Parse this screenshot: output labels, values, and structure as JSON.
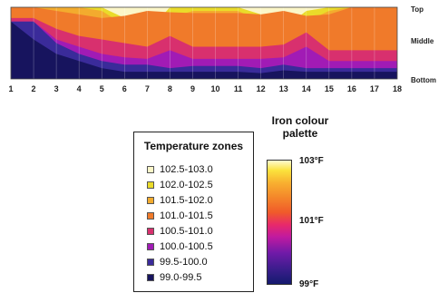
{
  "chart_data": {
    "type": "heatmap",
    "title": "",
    "x": [
      1,
      2,
      3,
      4,
      5,
      6,
      7,
      8,
      9,
      10,
      11,
      12,
      13,
      14,
      15,
      16,
      17,
      18
    ],
    "y_labels": [
      "Top",
      "Middle",
      "Bottom"
    ],
    "zone_upper_boundaries_from_bottom": [
      {
        "zone": "99.0-99.5",
        "values": [
          80,
          55,
          35,
          25,
          15,
          10,
          10,
          10,
          10,
          10,
          10,
          8,
          12,
          10,
          10,
          10,
          10,
          10
        ]
      },
      {
        "zone": "99.5-100.0",
        "values": [
          80,
          80,
          50,
          35,
          25,
          20,
          20,
          15,
          18,
          18,
          18,
          15,
          20,
          15,
          15,
          15,
          15,
          15
        ]
      },
      {
        "zone": "100.0-100.5",
        "values": [
          80,
          80,
          55,
          45,
          35,
          30,
          28,
          40,
          28,
          28,
          28,
          28,
          30,
          45,
          25,
          25,
          25,
          25
        ]
      },
      {
        "zone": "100.5-101.0",
        "values": [
          85,
          85,
          70,
          60,
          55,
          50,
          45,
          60,
          45,
          45,
          45,
          45,
          48,
          65,
          40,
          40,
          40,
          40
        ]
      },
      {
        "zone": "101.0-101.5",
        "values": [
          100,
          100,
          95,
          90,
          85,
          88,
          95,
          93,
          92,
          92,
          92,
          90,
          95,
          88,
          90,
          100,
          100,
          100
        ]
      },
      {
        "zone": "101.5-102.0",
        "values": [
          100,
          100,
          100,
          100,
          95,
          75,
          75,
          85,
          95,
          95,
          95,
          80,
          80,
          80,
          95,
          100,
          100,
          100
        ]
      },
      {
        "zone": "102.0-102.5",
        "values": [
          100,
          100,
          100,
          100,
          100,
          85,
          65,
          100,
          100,
          100,
          100,
          90,
          70,
          95,
          100,
          100,
          100,
          100
        ]
      },
      {
        "zone": "102.5-103.0",
        "values": [
          100,
          100,
          100,
          100,
          100,
          100,
          60,
          100,
          100,
          100,
          100,
          100,
          60,
          100,
          100,
          100,
          100,
          100
        ]
      }
    ],
    "ylim": [
      0,
      100
    ],
    "colors": [
      "#17145e",
      "#3a2b9a",
      "#a11bb5",
      "#d8306e",
      "#f07a2a",
      "#f3ab2e",
      "#eadb2a",
      "#fbf6c8"
    ],
    "legend": {
      "title": "Temperature zones",
      "items": [
        "102.5-103.0",
        "102.0-102.5",
        "101.5-102.0",
        "101.0-101.5",
        "100.5-101.0",
        "100.0-100.5",
        "99.5-100.0",
        "99.0-99.5"
      ]
    },
    "palette": {
      "title": "Iron colour palette",
      "top": "103°F",
      "mid": "101°F",
      "bottom": "99°F"
    }
  }
}
